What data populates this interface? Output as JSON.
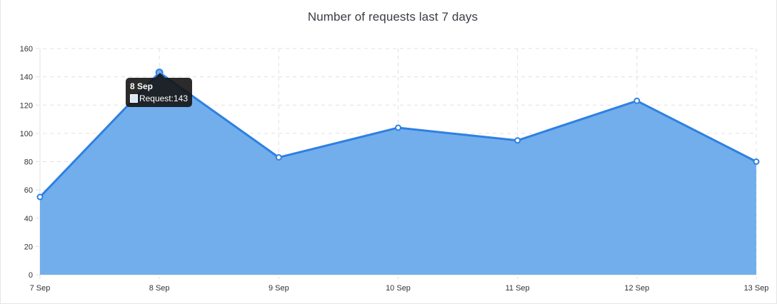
{
  "chart_data": {
    "type": "area",
    "title": "Number of requests last 7 days",
    "categories": [
      "7 Sep",
      "8 Sep",
      "9 Sep",
      "10 Sep",
      "11 Sep",
      "12 Sep",
      "13 Sep"
    ],
    "series": [
      {
        "name": "Request",
        "values": [
          55,
          143,
          83,
          104,
          95,
          123,
          80
        ]
      }
    ],
    "ylim": [
      0,
      160
    ],
    "yticks": [
      0,
      20,
      40,
      60,
      80,
      100,
      120,
      140,
      160
    ],
    "grid": true,
    "colors": {
      "line": "#2f80e0",
      "fill": "#72aeec"
    }
  },
  "tooltip": {
    "title": "8 Sep",
    "label": "Request:143"
  }
}
